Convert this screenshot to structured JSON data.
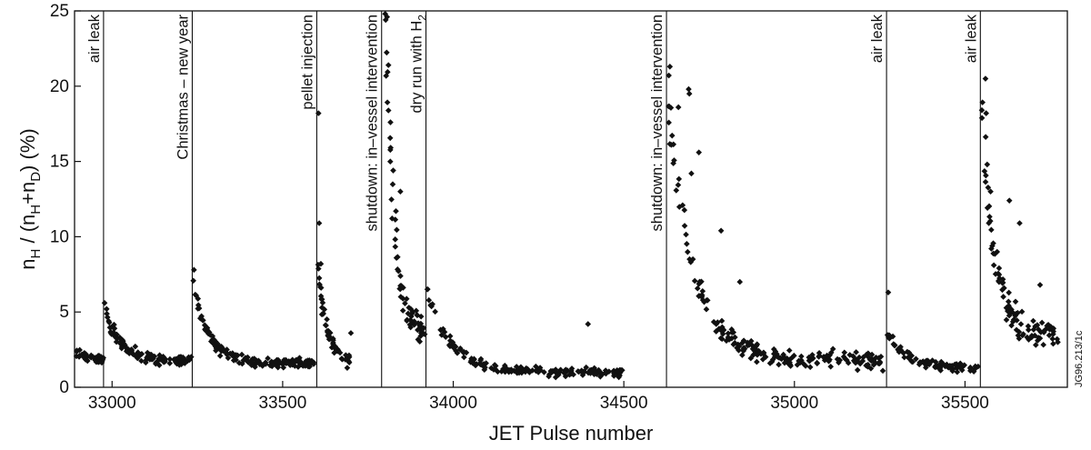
{
  "chart_data": {
    "type": "scatter",
    "xlabel": "JET Pulse number",
    "ylabel": "n_H / (n_H+n_D) (%)",
    "xlim": [
      32890,
      35800
    ],
    "ylim": [
      0,
      25
    ],
    "xticks": [
      33000,
      33500,
      34000,
      34500,
      35000,
      35500
    ],
    "yticks": [
      0,
      5,
      10,
      15,
      20,
      25
    ],
    "figure_id": "JG96.213/1c",
    "events": [
      {
        "x": 32975,
        "label": "air leak"
      },
      {
        "x": 33235,
        "label": "Christmas – new year"
      },
      {
        "x": 33600,
        "label": "pellet injection"
      },
      {
        "x": 33790,
        "label": "shutdown: in–vessel intervention"
      },
      {
        "x": 33920,
        "label": "dry run with H",
        "sub": "2"
      },
      {
        "x": 34625,
        "label": "shutdown: in–vessel intervention"
      },
      {
        "x": 35270,
        "label": "air leak"
      },
      {
        "x": 35545,
        "label": "air leak"
      }
    ],
    "series": [
      {
        "segments": [
          {
            "x0": 32895,
            "x1": 32975,
            "n": 40,
            "start": 2.3,
            "end": 1.6,
            "tau": 60,
            "noise": 0.6,
            "seed": 1
          },
          {
            "x0": 32978,
            "x1": 33232,
            "n": 120,
            "start": 5.4,
            "end": 1.8,
            "tau": 40,
            "noise": 0.7,
            "seed": 2
          },
          {
            "x0": 33238,
            "x1": 33598,
            "n": 150,
            "start": 7.0,
            "end": 1.6,
            "tau": 45,
            "noise": 0.6,
            "seed": 3
          },
          {
            "x0": 33602,
            "x1": 33700,
            "n": 55,
            "start": 8.0,
            "end": 1.6,
            "tau": 28,
            "noise": 0.9,
            "seed": 4
          },
          {
            "x0": 33800,
            "x1": 33918,
            "n": 65,
            "start": 24.5,
            "end": 3.5,
            "tau": 25,
            "noise": 1.6,
            "seed": 5
          },
          {
            "x0": 33922,
            "x1": 34500,
            "n": 170,
            "start": 6.5,
            "end": 1.0,
            "tau": 70,
            "noise": 0.6,
            "seed": 6
          },
          {
            "x0": 34630,
            "x1": 35260,
            "n": 210,
            "start": 19.0,
            "end": 1.8,
            "tau": 75,
            "noise": 1.1,
            "seed": 7
          },
          {
            "x0": 35272,
            "x1": 35540,
            "n": 90,
            "start": 3.5,
            "end": 1.2,
            "tau": 60,
            "noise": 0.6,
            "seed": 8
          },
          {
            "x0": 35548,
            "x1": 35760,
            "n": 95,
            "start": 19.0,
            "end": 3.5,
            "tau": 35,
            "noise": 1.4,
            "seed": 9
          }
        ],
        "points": [
          [
            32978,
            5.6
          ],
          [
            33240,
            7.8
          ],
          [
            33605,
            18.2
          ],
          [
            33607,
            10.9
          ],
          [
            33612,
            8.2
          ],
          [
            33700,
            3.6
          ],
          [
            33802,
            24.4
          ],
          [
            33806,
            24.6
          ],
          [
            33810,
            21.4
          ],
          [
            33816,
            17.6
          ],
          [
            33824,
            14.4
          ],
          [
            33832,
            11.7
          ],
          [
            33845,
            13.0
          ],
          [
            34635,
            21.3
          ],
          [
            34660,
            18.6
          ],
          [
            34690,
            19.8
          ],
          [
            34692,
            19.5
          ],
          [
            34698,
            14.2
          ],
          [
            34720,
            15.6
          ],
          [
            34785,
            10.4
          ],
          [
            34840,
            7.0
          ],
          [
            35275,
            6.3
          ],
          [
            35560,
            20.5
          ],
          [
            35562,
            18.2
          ],
          [
            35565,
            14.8
          ],
          [
            35575,
            13.0
          ],
          [
            35630,
            12.4
          ],
          [
            35660,
            10.9
          ],
          [
            35720,
            6.8
          ],
          [
            35770,
            3.2
          ],
          [
            35772,
            3.0
          ],
          [
            34395,
            4.2
          ]
        ]
      }
    ]
  }
}
